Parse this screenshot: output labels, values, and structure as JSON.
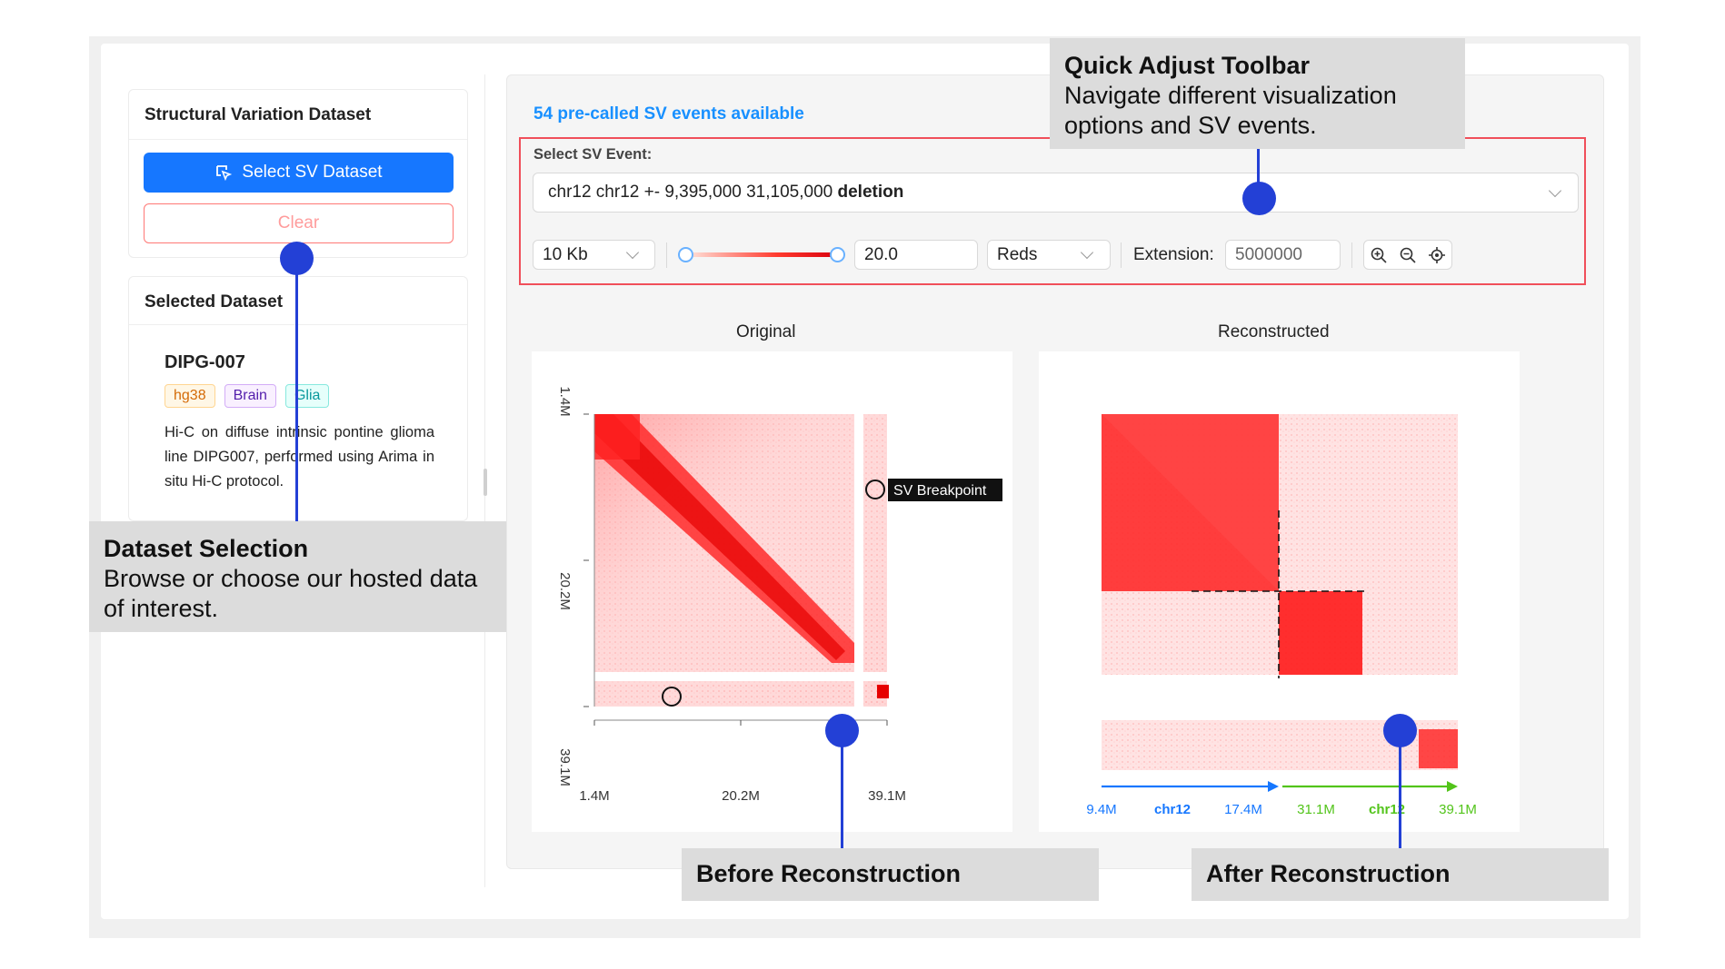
{
  "sidebar": {
    "dataset_card_title": "Structural Variation Dataset",
    "select_button": "Select SV Dataset",
    "clear_button": "Clear",
    "selected_card_title": "Selected Dataset",
    "dataset": {
      "name": "DIPG-007",
      "tags": [
        {
          "label": "hg38",
          "color": "#d46b08",
          "bg": "#fff7e6",
          "border": "#ffd591"
        },
        {
          "label": "Brain",
          "color": "#531dab",
          "bg": "#f9f0ff",
          "border": "#d3adf7"
        },
        {
          "label": "Glia",
          "color": "#08979c",
          "bg": "#e6fffb",
          "border": "#87e8de"
        }
      ],
      "description": "Hi-C on diffuse intrinsic pontine glioma line DIPG007, performed using Arima in situ Hi-C protocol."
    }
  },
  "main": {
    "events_available": "54 pre-called SV events available",
    "select_event_label": "Select SV Event:",
    "event": {
      "text": "chr12 chr12 +- 9,395,000 31,105,000",
      "type": "deletion"
    },
    "resolution": "10 Kb",
    "slider_value": "20.0",
    "slider_level": 1.0,
    "colormap": "Reds",
    "extension_label": "Extension:",
    "extension_value": "5000000",
    "toolbar_icons": [
      "zoom-in-icon",
      "zoom-out-icon",
      "locate-icon"
    ]
  },
  "plots": {
    "original": {
      "title": "Original",
      "x_ticks": [
        "1.4M",
        "20.2M",
        "39.1M"
      ],
      "y_ticks": [
        "1.4M",
        "20.2M",
        "39.1M"
      ],
      "breakpoint_label": "SV Breakpoint"
    },
    "reconstructed": {
      "title": "Reconstructed",
      "segments": [
        {
          "start": "9.4M",
          "chrom": "chr12",
          "end": "17.4M",
          "color": "#1677ff"
        },
        {
          "start": "31.1M",
          "chrom": "chr12",
          "end": "39.1M",
          "color": "#52c41a"
        }
      ]
    }
  },
  "annotations": {
    "toolbar": {
      "title": "Quick Adjust Toolbar",
      "body": "Navigate different visualization options and SV events."
    },
    "dataset": {
      "title": "Dataset Selection",
      "body": "Browse or choose our hosted data of interest."
    },
    "before": {
      "title": "Before Reconstruction"
    },
    "after": {
      "title": "After Reconstruction"
    }
  },
  "colors": {
    "accent": "#1677ff",
    "heat": "#ff1f1f",
    "marker": "#2340d6",
    "highlight": "#f04f5a"
  }
}
